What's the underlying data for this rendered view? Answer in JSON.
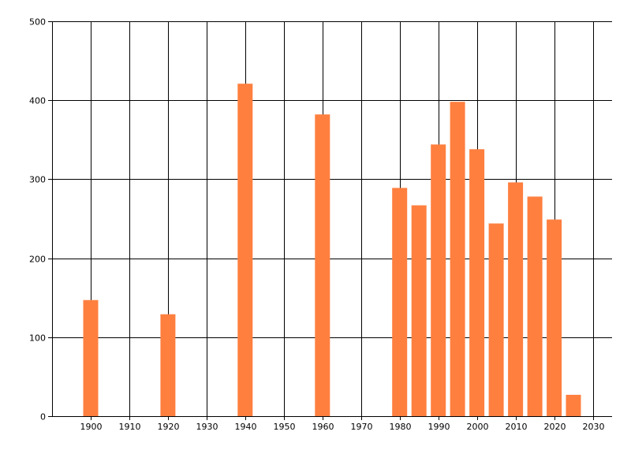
{
  "chart_data": {
    "type": "bar",
    "x": [
      1900,
      1920,
      1940,
      1960,
      1980,
      1985,
      1990,
      1995,
      2000,
      2005,
      2010,
      2015,
      2020,
      2025
    ],
    "values": [
      147,
      129,
      421,
      382,
      289,
      267,
      344,
      398,
      338,
      244,
      296,
      278,
      249,
      27
    ],
    "xlim": [
      1890,
      2035
    ],
    "ylim": [
      0,
      500
    ],
    "x_ticks": [
      1900,
      1910,
      1920,
      1930,
      1940,
      1950,
      1960,
      1970,
      1980,
      1990,
      2000,
      2010,
      2020,
      2030
    ],
    "y_ticks": [
      0,
      100,
      200,
      300,
      400,
      500
    ],
    "grid": true,
    "legend": "none",
    "colors": {
      "bar": "#ff7f3f",
      "grid": "#000000",
      "axis": "#000000"
    }
  }
}
